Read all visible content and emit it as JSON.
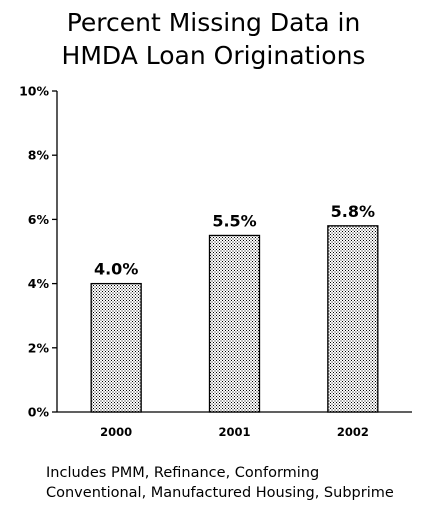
{
  "chart_data": {
    "type": "bar",
    "title_lines": [
      "Percent Missing Data in",
      "HMDA Loan Originations"
    ],
    "categories": [
      "2000",
      "2001",
      "2002"
    ],
    "values": [
      4.0,
      5.5,
      5.8
    ],
    "data_labels": [
      "4.0%",
      "5.5%",
      "5.8%"
    ],
    "ylim": [
      0,
      10
    ],
    "yticks": [
      0,
      2,
      4,
      6,
      8,
      10
    ],
    "ytick_labels": [
      "0%",
      "2%",
      "4%",
      "6%",
      "8%",
      "10%"
    ],
    "xlabel": "",
    "ylabel": "",
    "grid": false,
    "bar_fill": "dotted pattern",
    "bar_color": "#ffffff",
    "dot_color": "#000000"
  },
  "caption_lines": [
    "Includes PMM, Refinance, Conforming",
    "Conventional, Manufactured Housing, Subprime"
  ]
}
